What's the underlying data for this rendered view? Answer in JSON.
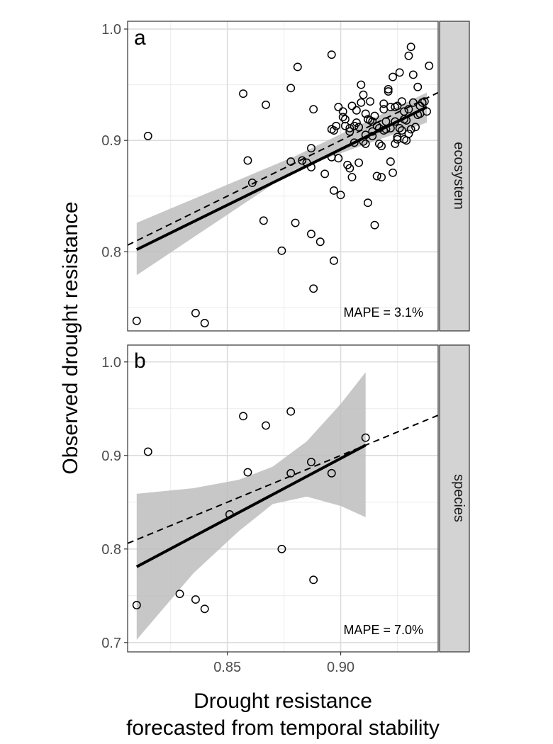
{
  "chart_data": [
    {
      "type": "scatter",
      "panel_label": "a",
      "facet_label": "ecosystem",
      "annotation": "MAPE = 3.1%",
      "xlabel": "",
      "ylabel": "",
      "xlim": [
        0.806,
        0.943
      ],
      "ylim": [
        0.729,
        1.007
      ],
      "x_ticks": [
        0.85,
        0.9
      ],
      "x_tick_labels": [
        "",
        ""
      ],
      "y_ticks": [
        0.8,
        0.9,
        1.0
      ],
      "y_tick_labels": [
        "0.8",
        "0.9",
        "1.0"
      ],
      "grid": true,
      "reference_line": {
        "style": "dashed",
        "slope": 1,
        "intercept": 0
      },
      "fit_line": {
        "x": [
          0.81,
          0.938
        ],
        "y": [
          0.802,
          0.93
        ]
      },
      "confidence_band": {
        "x": [
          0.81,
          0.88,
          0.938
        ],
        "lower": [
          0.779,
          0.874,
          0.916
        ],
        "upper": [
          0.826,
          0.886,
          0.943
        ]
      },
      "points": {
        "x": [
          0.81,
          0.815,
          0.836,
          0.84,
          0.857,
          0.859,
          0.861,
          0.866,
          0.867,
          0.874,
          0.878,
          0.878,
          0.88,
          0.881,
          0.883,
          0.885,
          0.887,
          0.887,
          0.887,
          0.888,
          0.888,
          0.891,
          0.893,
          0.896,
          0.896,
          0.896,
          0.897,
          0.897,
          0.897,
          0.898,
          0.899,
          0.899,
          0.9,
          0.901,
          0.901,
          0.902,
          0.902,
          0.903,
          0.904,
          0.904,
          0.904,
          0.905,
          0.905,
          0.906,
          0.906,
          0.907,
          0.907,
          0.908,
          0.908,
          0.909,
          0.909,
          0.91,
          0.91,
          0.911,
          0.911,
          0.911,
          0.912,
          0.912,
          0.913,
          0.913,
          0.914,
          0.914,
          0.914,
          0.915,
          0.915,
          0.916,
          0.916,
          0.917,
          0.917,
          0.918,
          0.918,
          0.919,
          0.919,
          0.919,
          0.92,
          0.92,
          0.921,
          0.921,
          0.922,
          0.922,
          0.922,
          0.923,
          0.923,
          0.924,
          0.924,
          0.924,
          0.925,
          0.925,
          0.925,
          0.926,
          0.926,
          0.927,
          0.927,
          0.928,
          0.928,
          0.928,
          0.929,
          0.929,
          0.93,
          0.93,
          0.93,
          0.931,
          0.931,
          0.932,
          0.932,
          0.933,
          0.934,
          0.934,
          0.935,
          0.935,
          0.936,
          0.937,
          0.938,
          0.939
        ],
        "y": [
          0.738,
          0.904,
          0.745,
          0.736,
          0.942,
          0.882,
          0.862,
          0.828,
          0.932,
          0.801,
          0.947,
          0.881,
          0.826,
          0.966,
          0.882,
          0.88,
          0.893,
          0.816,
          0.876,
          0.767,
          0.928,
          0.809,
          0.87,
          0.977,
          0.91,
          0.885,
          0.909,
          0.855,
          0.792,
          0.913,
          0.93,
          0.884,
          0.851,
          0.926,
          0.921,
          0.913,
          0.919,
          0.878,
          0.908,
          0.911,
          0.875,
          0.931,
          0.867,
          0.913,
          0.898,
          0.916,
          0.927,
          0.88,
          0.912,
          0.95,
          0.934,
          0.941,
          0.899,
          0.924,
          0.897,
          0.905,
          0.919,
          0.844,
          0.935,
          0.918,
          0.917,
          0.908,
          0.904,
          0.824,
          0.922,
          0.913,
          0.868,
          0.897,
          0.911,
          0.867,
          0.895,
          0.928,
          0.933,
          0.909,
          0.917,
          0.91,
          0.944,
          0.946,
          0.881,
          0.911,
          0.93,
          0.871,
          0.957,
          0.917,
          0.93,
          0.897,
          0.901,
          0.903,
          0.931,
          0.961,
          0.911,
          0.909,
          0.935,
          0.926,
          0.901,
          0.919,
          0.9,
          0.918,
          0.928,
          0.906,
          0.976,
          0.984,
          0.91,
          0.959,
          0.934,
          0.912,
          0.923,
          0.948,
          0.924,
          0.931,
          0.934,
          0.935,
          0.926,
          0.967
        ]
      }
    },
    {
      "type": "scatter",
      "panel_label": "b",
      "facet_label": "species",
      "annotation": "MAPE = 7.0%",
      "xlabel": "Drought resistance",
      "xlabel2": "forecasted from temporal stability",
      "ylabel": "Observed drought resistance",
      "xlim": [
        0.806,
        0.943
      ],
      "ylim": [
        0.69,
        1.018
      ],
      "x_ticks": [
        0.85,
        0.9
      ],
      "x_tick_labels": [
        "0.85",
        "0.90"
      ],
      "y_ticks": [
        0.7,
        0.8,
        0.9,
        1.0
      ],
      "y_tick_labels": [
        "0.7",
        "0.8",
        "0.9",
        "1.0"
      ],
      "grid": true,
      "reference_line": {
        "style": "dashed",
        "slope": 1,
        "intercept": 0
      },
      "fit_line": {
        "x": [
          0.81,
          0.911
        ],
        "y": [
          0.781,
          0.911
        ]
      },
      "confidence_band": {
        "x": [
          0.81,
          0.835,
          0.855,
          0.87,
          0.885,
          0.9,
          0.911
        ],
        "lower": [
          0.703,
          0.774,
          0.819,
          0.848,
          0.856,
          0.846,
          0.834
        ],
        "upper": [
          0.859,
          0.865,
          0.874,
          0.888,
          0.915,
          0.955,
          0.989
        ]
      },
      "points": {
        "x": [
          0.81,
          0.815,
          0.829,
          0.836,
          0.84,
          0.851,
          0.857,
          0.859,
          0.867,
          0.874,
          0.878,
          0.878,
          0.887,
          0.888,
          0.896,
          0.911
        ],
        "y": [
          0.74,
          0.904,
          0.752,
          0.746,
          0.736,
          0.837,
          0.942,
          0.882,
          0.932,
          0.8,
          0.947,
          0.881,
          0.893,
          0.767,
          0.881,
          0.919
        ]
      }
    }
  ]
}
